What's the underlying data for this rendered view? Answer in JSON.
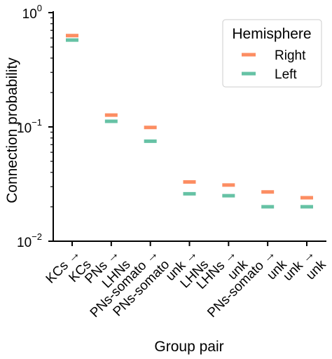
{
  "chart_data": {
    "type": "scatter",
    "xlabel": "Group pair",
    "ylabel": "Connection probability",
    "yscale": "log",
    "ylim": [
      0.01,
      1.0
    ],
    "y_ticks": [
      {
        "value": 1.0,
        "base": "10",
        "exp": "0"
      },
      {
        "value": 0.1,
        "base": "10",
        "exp": "−1"
      },
      {
        "value": 0.01,
        "base": "10",
        "exp": "−2"
      }
    ],
    "categories": [
      [
        "KCs →",
        "KCs"
      ],
      [
        "PNs →",
        "LHNs"
      ],
      [
        "PNs-somato →",
        "PNs-somato"
      ],
      [
        "unk →",
        "LHNs"
      ],
      [
        "LHNs →",
        "unk"
      ],
      [
        "PNs-somato →",
        "unk"
      ],
      [
        "unk →",
        "unk"
      ]
    ],
    "series": [
      {
        "name": "Right",
        "color": "#fc8d62",
        "values": [
          0.63,
          0.127,
          0.099,
          0.033,
          0.031,
          0.027,
          0.024
        ]
      },
      {
        "name": "Left",
        "color": "#66c2a5",
        "values": [
          0.575,
          0.112,
          0.075,
          0.026,
          0.025,
          0.02,
          0.02
        ]
      }
    ],
    "legend": {
      "title": "Hemisphere",
      "position": "top-right"
    },
    "grid": false
  }
}
